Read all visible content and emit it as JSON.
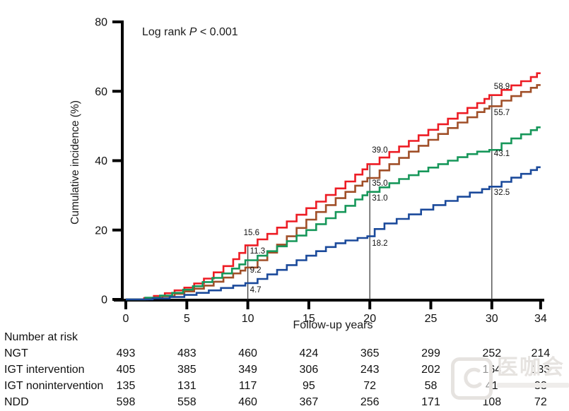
{
  "log_rank": {
    "prefix": "Log rank ",
    "p": "P",
    "suffix": " < 0.001"
  },
  "y_axis": {
    "label": "Cumulative incidence (%)",
    "ticks": [
      0,
      20,
      40,
      60,
      80
    ],
    "lim": [
      0,
      80
    ]
  },
  "x_axis": {
    "label": "Follow-up years",
    "ticks": [
      0,
      5,
      10,
      15,
      20,
      25,
      30,
      34
    ],
    "lim": [
      0,
      34
    ]
  },
  "chart_data": {
    "type": "line",
    "subtype": "kaplan-meier-step",
    "title": "",
    "annotation": "Log rank P < 0.001",
    "xlabel": "Follow-up years",
    "ylabel": "Cumulative incidence (%)",
    "xlim": [
      0,
      34
    ],
    "ylim": [
      0,
      80
    ],
    "grid": false,
    "legend_position": "none",
    "labeled_values": {
      "years": [
        10,
        20,
        30
      ],
      "NDD": [
        15.6,
        39.0,
        58.9
      ],
      "IGT nonintervention": [
        9.2,
        35.0,
        55.7
      ],
      "IGT intervention": [
        11.3,
        31.0,
        43.1
      ],
      "NGT": [
        4.7,
        18.2,
        32.5
      ]
    },
    "series": [
      {
        "name": "NDD",
        "color": "#ed1c24",
        "points": [
          [
            1.5,
            0.4
          ],
          [
            2.3,
            1.0
          ],
          [
            3.2,
            1.8
          ],
          [
            4,
            2.6
          ],
          [
            4.8,
            3.4
          ],
          [
            5.6,
            4.6
          ],
          [
            6.4,
            6.0
          ],
          [
            7.2,
            7.8
          ],
          [
            8,
            9.6
          ],
          [
            8.8,
            11.6
          ],
          [
            9.3,
            13.4
          ],
          [
            9.8,
            15.6
          ],
          [
            10.8,
            17.3
          ],
          [
            11.6,
            18.9
          ],
          [
            12.4,
            20.7
          ],
          [
            13.2,
            22.5
          ],
          [
            14,
            24.4
          ],
          [
            14.8,
            26.3
          ],
          [
            15.6,
            28.2
          ],
          [
            16.4,
            30.1
          ],
          [
            17.2,
            32.0
          ],
          [
            18,
            34.0
          ],
          [
            18.8,
            36.0
          ],
          [
            19.4,
            37.5
          ],
          [
            19.8,
            39.0
          ],
          [
            20.8,
            40.9
          ],
          [
            21.6,
            42.5
          ],
          [
            22.4,
            44.1
          ],
          [
            23.2,
            45.7
          ],
          [
            24,
            47.3
          ],
          [
            24.8,
            48.9
          ],
          [
            25.6,
            50.5
          ],
          [
            26.4,
            52.1
          ],
          [
            27.2,
            53.7
          ],
          [
            28,
            55.2
          ],
          [
            28.8,
            56.6
          ],
          [
            29.4,
            57.8
          ],
          [
            29.8,
            58.9
          ],
          [
            30.8,
            60.4
          ],
          [
            31.6,
            61.7
          ],
          [
            32.4,
            62.9
          ],
          [
            33.2,
            64.1
          ],
          [
            33.7,
            65.2
          ]
        ]
      },
      {
        "name": "IGT nonintervention",
        "color": "#a04f28",
        "points": [
          [
            1.8,
            0.4
          ],
          [
            3,
            0.9
          ],
          [
            4,
            1.6
          ],
          [
            4.8,
            2.3
          ],
          [
            5.6,
            3.1
          ],
          [
            6.4,
            4.0
          ],
          [
            7.2,
            5.1
          ],
          [
            8,
            6.3
          ],
          [
            8.8,
            7.5
          ],
          [
            9.4,
            8.3
          ],
          [
            9.8,
            9.2
          ],
          [
            10.8,
            11.3
          ],
          [
            11.6,
            13.5
          ],
          [
            12.4,
            15.8
          ],
          [
            13.2,
            18.2
          ],
          [
            14,
            20.6
          ],
          [
            14.8,
            23.0
          ],
          [
            15.6,
            25.2
          ],
          [
            16.4,
            27.2
          ],
          [
            17.2,
            29.2
          ],
          [
            18,
            31.0
          ],
          [
            18.8,
            32.8
          ],
          [
            19.4,
            34.0
          ],
          [
            19.8,
            35.0
          ],
          [
            20.8,
            37.2
          ],
          [
            21.6,
            39.0
          ],
          [
            22.4,
            40.8
          ],
          [
            23.2,
            42.6
          ],
          [
            24,
            44.3
          ],
          [
            24.8,
            46.0
          ],
          [
            25.6,
            47.7
          ],
          [
            26.4,
            49.4
          ],
          [
            27.2,
            51.0
          ],
          [
            28,
            52.5
          ],
          [
            28.8,
            54.0
          ],
          [
            29.4,
            55.0
          ],
          [
            29.8,
            55.7
          ],
          [
            30.8,
            57.3
          ],
          [
            31.6,
            58.6
          ],
          [
            32.4,
            59.8
          ],
          [
            33.2,
            61.0
          ],
          [
            33.7,
            61.8
          ]
        ]
      },
      {
        "name": "IGT intervention",
        "color": "#17975a",
        "points": [
          [
            1.6,
            0.5
          ],
          [
            2.8,
            1.1
          ],
          [
            3.8,
            1.9
          ],
          [
            4.7,
            2.8
          ],
          [
            5.5,
            3.8
          ],
          [
            6.3,
            5.0
          ],
          [
            7.1,
            6.2
          ],
          [
            7.9,
            7.5
          ],
          [
            8.7,
            8.9
          ],
          [
            9.3,
            10.1
          ],
          [
            9.8,
            11.3
          ],
          [
            10.8,
            12.6
          ],
          [
            11.6,
            13.9
          ],
          [
            12.4,
            15.3
          ],
          [
            13.2,
            16.8
          ],
          [
            14,
            18.4
          ],
          [
            14.8,
            20.0
          ],
          [
            15.6,
            21.7
          ],
          [
            16.4,
            23.4
          ],
          [
            17.2,
            25.2
          ],
          [
            18,
            27.0
          ],
          [
            18.8,
            28.8
          ],
          [
            19.4,
            30.0
          ],
          [
            19.8,
            31.0
          ],
          [
            20.8,
            32.3
          ],
          [
            21.6,
            33.5
          ],
          [
            22.4,
            34.7
          ],
          [
            23.2,
            35.8
          ],
          [
            24,
            36.9
          ],
          [
            24.8,
            38.0
          ],
          [
            25.6,
            39.0
          ],
          [
            26.4,
            40.0
          ],
          [
            27.2,
            41.0
          ],
          [
            28,
            41.9
          ],
          [
            28.8,
            42.6
          ],
          [
            29.8,
            43.1
          ],
          [
            30.8,
            45.0
          ],
          [
            31.6,
            46.4
          ],
          [
            32.4,
            47.6
          ],
          [
            33.2,
            48.8
          ],
          [
            33.7,
            49.6
          ]
        ]
      },
      {
        "name": "NGT",
        "color": "#1b4a9b",
        "points": [
          [
            2.2,
            0.3
          ],
          [
            3.6,
            0.7
          ],
          [
            4.8,
            1.3
          ],
          [
            5.8,
            1.9
          ],
          [
            6.8,
            2.6
          ],
          [
            7.8,
            3.3
          ],
          [
            8.8,
            4.0
          ],
          [
            9.8,
            4.7
          ],
          [
            10.8,
            5.9
          ],
          [
            11.6,
            7.2
          ],
          [
            12.4,
            8.5
          ],
          [
            13.2,
            9.9
          ],
          [
            14,
            11.3
          ],
          [
            14.8,
            12.6
          ],
          [
            15.6,
            13.9
          ],
          [
            16.4,
            15.1
          ],
          [
            17.2,
            16.2
          ],
          [
            18,
            17.0
          ],
          [
            19,
            17.7
          ],
          [
            19.8,
            18.2
          ],
          [
            20.4,
            20.3
          ],
          [
            21.2,
            21.9
          ],
          [
            22.2,
            23.2
          ],
          [
            23.2,
            24.5
          ],
          [
            24.2,
            25.9
          ],
          [
            25.2,
            27.2
          ],
          [
            26.2,
            28.4
          ],
          [
            27.2,
            29.6
          ],
          [
            28.2,
            30.8
          ],
          [
            29.2,
            31.8
          ],
          [
            29.8,
            32.5
          ],
          [
            30.8,
            33.9
          ],
          [
            31.6,
            35.1
          ],
          [
            32.4,
            36.2
          ],
          [
            33.2,
            37.3
          ],
          [
            33.7,
            38.1
          ]
        ]
      }
    ]
  },
  "ref_lines": [
    {
      "year": 10,
      "top": 15.6,
      "labels": [
        {
          "text": "15.6",
          "pct": 19.3,
          "dx": -6
        },
        {
          "text": "11.3",
          "pct": 14.0,
          "dx": 3
        },
        {
          "text": "9.2",
          "pct": 8.6,
          "dx": 3
        },
        {
          "text": "4.7",
          "pct": 2.9,
          "dx": 3
        }
      ]
    },
    {
      "year": 20,
      "top": 39.0,
      "labels": [
        {
          "text": "39.0",
          "pct": 43.2,
          "dx": 3
        },
        {
          "text": "35.0",
          "pct": 33.6,
          "dx": 3
        },
        {
          "text": "31.0",
          "pct": 29.3,
          "dx": 3
        },
        {
          "text": "18.2",
          "pct": 16.3,
          "dx": 3
        }
      ]
    },
    {
      "year": 30,
      "top": 58.9,
      "labels": [
        {
          "text": "58.9",
          "pct": 61.5,
          "dx": 3
        },
        {
          "text": "55.7",
          "pct": 53.9,
          "dx": 3
        },
        {
          "text": "43.1",
          "pct": 42.1,
          "dx": 3
        },
        {
          "text": "32.5",
          "pct": 30.9,
          "dx": 3
        }
      ]
    }
  ],
  "risk_table": {
    "title": "Number at risk",
    "years": [
      0,
      5,
      10,
      15,
      20,
      25,
      30,
      34
    ],
    "rows": [
      {
        "label": "NGT",
        "values": [
          493,
          483,
          460,
          424,
          365,
          299,
          252,
          214
        ]
      },
      {
        "label": "IGT intervention",
        "values": [
          405,
          385,
          349,
          306,
          243,
          202,
          164,
          133
        ]
      },
      {
        "label": "IGT nonintervention",
        "values": [
          135,
          131,
          117,
          95,
          72,
          58,
          41,
          33
        ]
      },
      {
        "label": "NDD",
        "values": [
          598,
          558,
          460,
          367,
          256,
          171,
          108,
          72
        ]
      }
    ]
  },
  "watermark": {
    "text": "医咖会"
  },
  "colors": {
    "axis": "#000000",
    "ref_line": "#3f3f3f",
    "text": "#111111"
  }
}
